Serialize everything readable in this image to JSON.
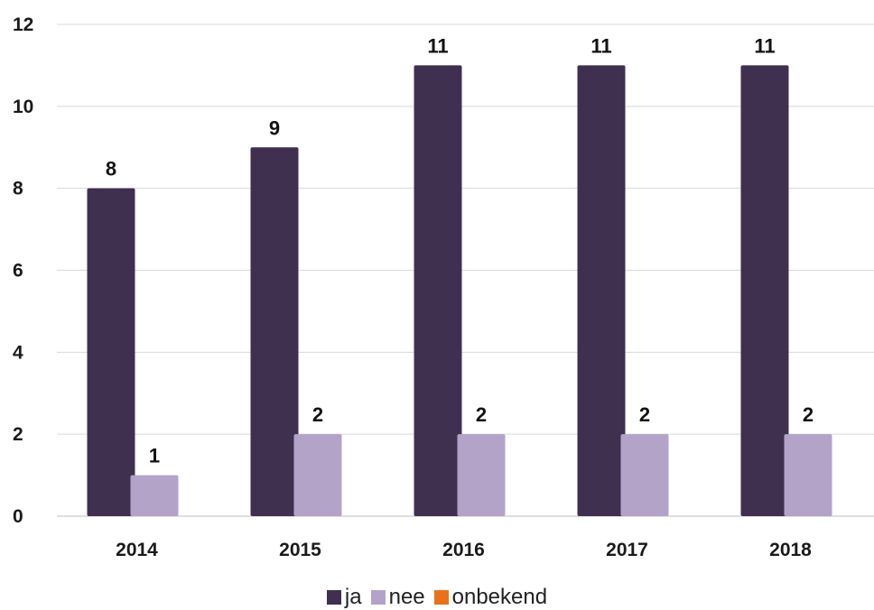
{
  "chart_data": {
    "type": "bar",
    "categories": [
      "2014",
      "2015",
      "2016",
      "2017",
      "2018"
    ],
    "series": [
      {
        "name": "ja",
        "color": "#3f3050",
        "values": [
          8,
          9,
          11,
          11,
          11
        ]
      },
      {
        "name": "nee",
        "color": "#b3a3c9",
        "values": [
          1,
          2,
          2,
          2,
          2
        ]
      },
      {
        "name": "onbekend",
        "color": "#e8711a",
        "values": [
          0,
          0,
          0,
          0,
          0
        ]
      }
    ],
    "y_ticks": [
      "0",
      "2",
      "4",
      "6",
      "8",
      "10",
      "12"
    ],
    "ylim": [
      0,
      12
    ],
    "grid": true,
    "legend_position": "bottom"
  }
}
